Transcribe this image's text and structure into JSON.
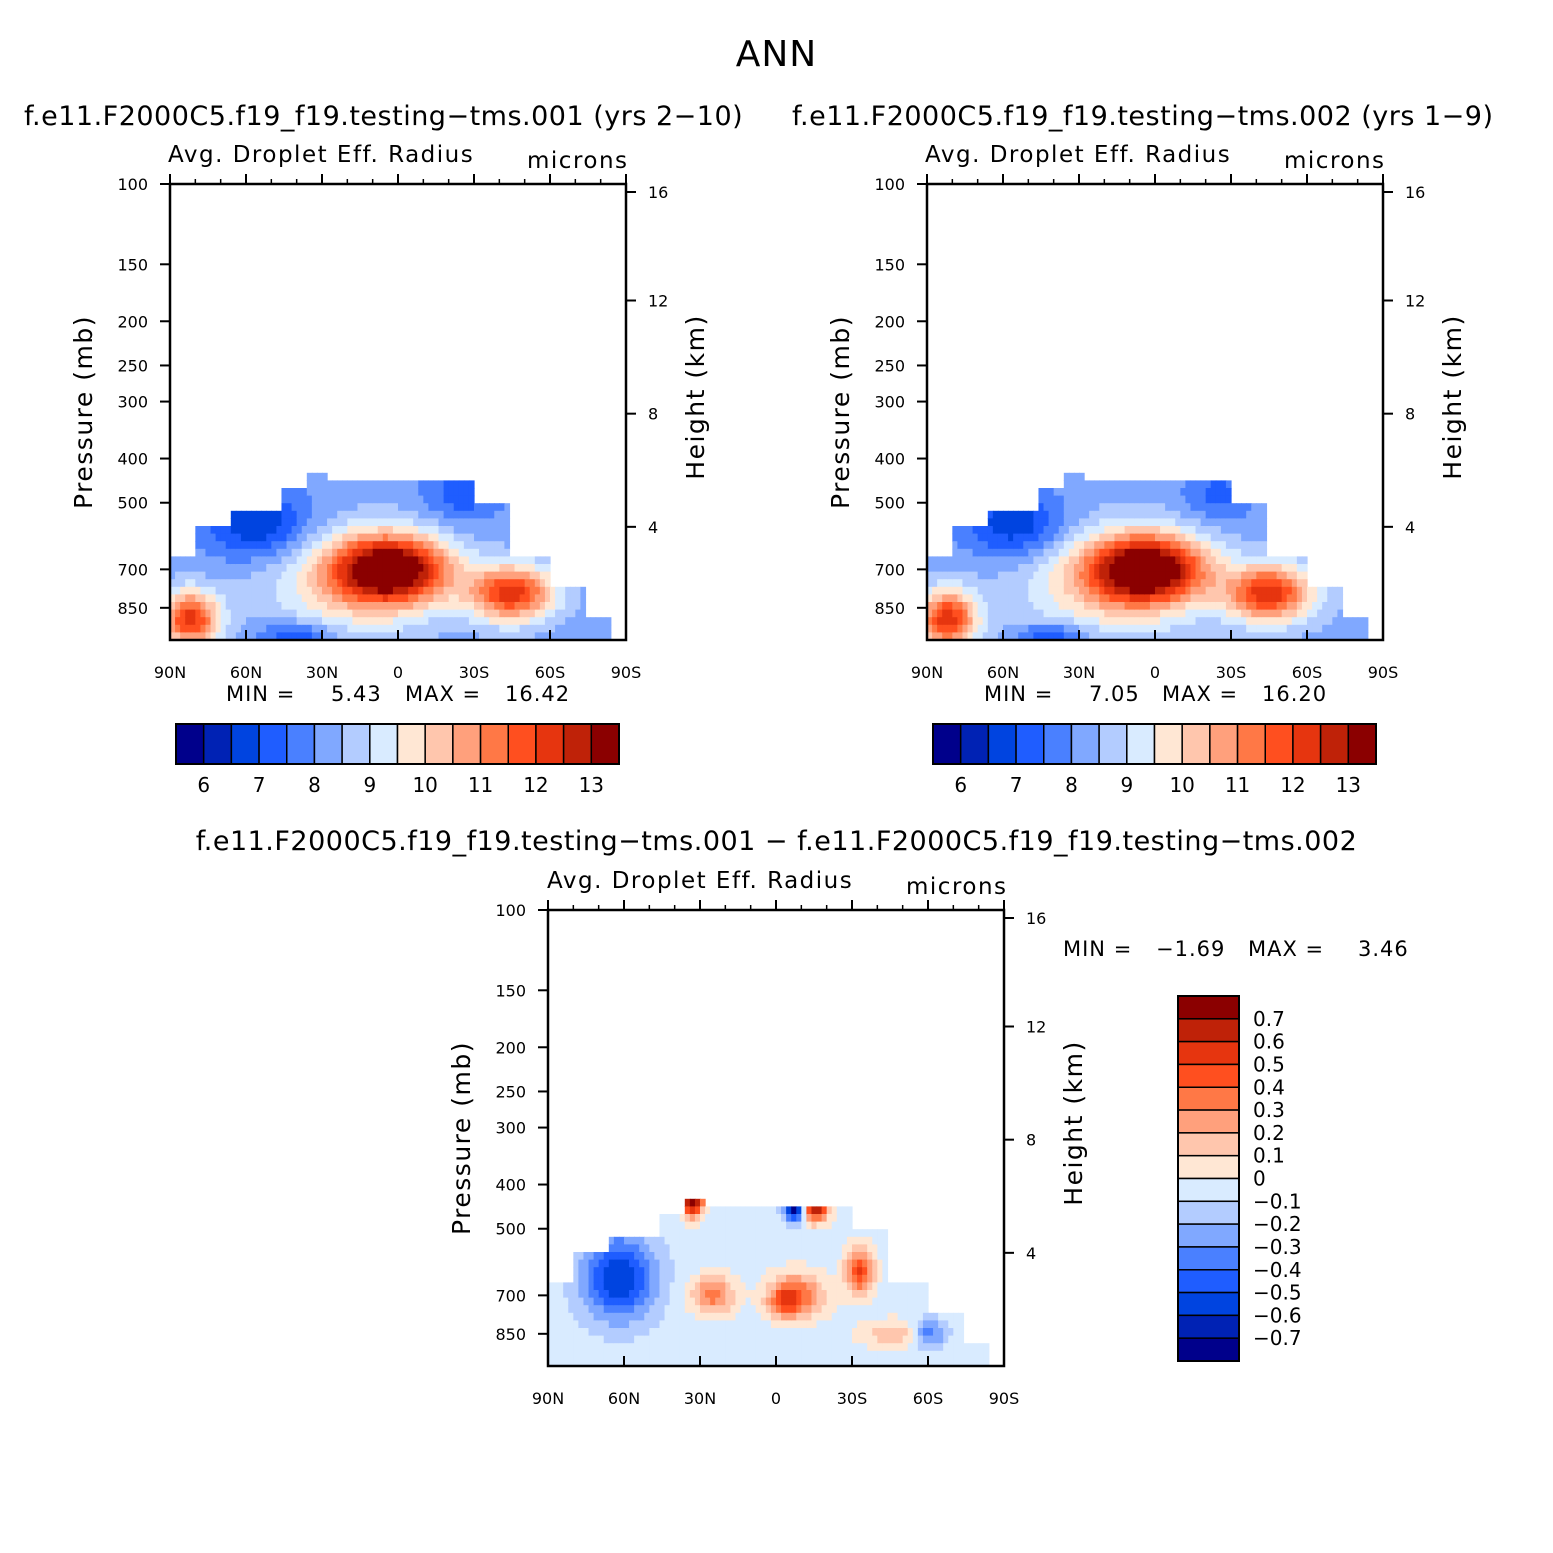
{
  "page_title": "ANN",
  "colors": {
    "abs": [
      "#00008b",
      "#0022b4",
      "#0044e0",
      "#1f5dff",
      "#4a80ff",
      "#80a8ff",
      "#b3ccff",
      "#d9ebff",
      "#ffe7d4",
      "#ffc6ad",
      "#ffa07c",
      "#ff7846",
      "#ff4f1f",
      "#e6350f",
      "#bf2208",
      "#8b0000"
    ],
    "diff": [
      "#00008b",
      "#0022b4",
      "#0044e0",
      "#1f5dff",
      "#4a80ff",
      "#80a8ff",
      "#b3ccff",
      "#d9ebff",
      "#ffe7d4",
      "#ffc6ad",
      "#ffa07c",
      "#ff7846",
      "#ff4f1f",
      "#e6350f",
      "#bf2208",
      "#8b0000"
    ]
  },
  "panels": [
    {
      "title": "f.e11.F2000C5.f19_f19.testing−tms.001 (yrs 2−10)",
      "subtitle": "Avg. Droplet Eff. Radius",
      "units": "microns",
      "y_label": "Pressure (mb)",
      "y2_label": "Height (km)",
      "y_ticks": [
        "100",
        "150",
        "200",
        "250",
        "300",
        "400",
        "500",
        "700",
        "850"
      ],
      "y2_ticks": [
        "16",
        "12",
        "8",
        "4"
      ],
      "x_ticks": [
        "90N",
        "60N",
        "30N",
        "0",
        "30S",
        "60S",
        "90S"
      ],
      "min_label": "MIN =",
      "min_value": "5.43",
      "max_label": "MAX =",
      "max_value": "16.42",
      "colorbar_labels": [
        "6",
        "7",
        "8",
        "9",
        "10",
        "11",
        "12",
        "13"
      ]
    },
    {
      "title": "f.e11.F2000C5.f19_f19.testing−tms.002 (yrs 1−9)",
      "subtitle": "Avg. Droplet Eff. Radius",
      "units": "microns",
      "y_label": "Pressure (mb)",
      "y2_label": "Height (km)",
      "y_ticks": [
        "100",
        "150",
        "200",
        "250",
        "300",
        "400",
        "500",
        "700",
        "850"
      ],
      "y2_ticks": [
        "16",
        "12",
        "8",
        "4"
      ],
      "x_ticks": [
        "90N",
        "60N",
        "30N",
        "0",
        "30S",
        "60S",
        "90S"
      ],
      "min_label": "MIN =",
      "min_value": "7.05",
      "max_label": "MAX =",
      "max_value": "16.20",
      "colorbar_labels": [
        "6",
        "7",
        "8",
        "9",
        "10",
        "11",
        "12",
        "13"
      ]
    },
    {
      "title": "f.e11.F2000C5.f19_f19.testing−tms.001 − f.e11.F2000C5.f19_f19.testing−tms.002",
      "subtitle": "Avg. Droplet Eff. Radius",
      "units": "microns",
      "y_label": "Pressure (mb)",
      "y2_label": "Height (km)",
      "y_ticks": [
        "100",
        "150",
        "200",
        "250",
        "300",
        "400",
        "500",
        "700",
        "850"
      ],
      "y2_ticks": [
        "16",
        "12",
        "8",
        "4"
      ],
      "x_ticks": [
        "90N",
        "60N",
        "30N",
        "0",
        "30S",
        "60S",
        "90S"
      ],
      "min_label": "MIN =",
      "min_value": "−1.69",
      "max_label": "MAX =",
      "max_value": "3.46",
      "colorbar_labels": [
        "0.7",
        "0.6",
        "0.5",
        "0.4",
        "0.3",
        "0.2",
        "0.1",
        "0",
        "−0.1",
        "−0.2",
        "−0.3",
        "−0.4",
        "−0.5",
        "−0.6",
        "−0.7"
      ]
    }
  ],
  "chart_data": [
    {
      "type": "heatmap",
      "title": "f.e11.F2000C5.f19_f19.testing−tms.001 (yrs 2−10)",
      "subtitle": "Avg. Droplet Eff. Radius",
      "units": "microns",
      "xlabel": "",
      "ylabel": "Pressure (mb)",
      "y2label": "Height (km)",
      "x_ticks": [
        "90N",
        "60N",
        "30N",
        "0",
        "30S",
        "60S",
        "90S"
      ],
      "y_ticks": [
        100,
        150,
        200,
        250,
        300,
        400,
        500,
        700,
        850
      ],
      "y_scale": "log",
      "y_reversed": true,
      "y2_ticks": [
        16,
        12,
        8,
        4
      ],
      "min": 5.43,
      "max": 16.42,
      "contour_levels": [
        6,
        6.5,
        7,
        7.5,
        8,
        8.5,
        9,
        9.5,
        10,
        10.5,
        11,
        11.5,
        12,
        12.5,
        13
      ],
      "colorbar_labels": [
        6,
        7,
        8,
        9,
        10,
        11,
        12,
        13
      ],
      "features": [
        {
          "region": "tropical lower troposphere (~20N to 20S, 650-750 mb)",
          "approx_value": 13.5
        },
        {
          "region": "southern midlatitudes (~40S to 60S, 750-850 mb)",
          "approx_value": 12.5
        },
        {
          "region": "north polar surface (~90N to 70N, 850-1000 mb)",
          "approx_value": 12
        },
        {
          "region": "upper cloud edge (~400-500 mb)",
          "approx_value": 7
        }
      ]
    },
    {
      "type": "heatmap",
      "title": "f.e11.F2000C5.f19_f19.testing−tms.002 (yrs 1−9)",
      "subtitle": "Avg. Droplet Eff. Radius",
      "units": "microns",
      "xlabel": "",
      "ylabel": "Pressure (mb)",
      "y2label": "Height (km)",
      "x_ticks": [
        "90N",
        "60N",
        "30N",
        "0",
        "30S",
        "60S",
        "90S"
      ],
      "y_ticks": [
        100,
        150,
        200,
        250,
        300,
        400,
        500,
        700,
        850
      ],
      "y_scale": "log",
      "y_reversed": true,
      "y2_ticks": [
        16,
        12,
        8,
        4
      ],
      "min": 7.05,
      "max": 16.2,
      "contour_levels": [
        6,
        6.5,
        7,
        7.5,
        8,
        8.5,
        9,
        9.5,
        10,
        10.5,
        11,
        11.5,
        12,
        12.5,
        13
      ],
      "colorbar_labels": [
        6,
        7,
        8,
        9,
        10,
        11,
        12,
        13
      ],
      "features": [
        {
          "region": "tropical lower troposphere (~20N to 20S, 650-750 mb)",
          "approx_value": 13.5
        },
        {
          "region": "southern midlatitudes (~40S to 60S, 750-850 mb)",
          "approx_value": 12.5
        },
        {
          "region": "north polar surface (~90N to 70N, 850-1000 mb)",
          "approx_value": 12
        },
        {
          "region": "upper cloud edge (~400-500 mb)",
          "approx_value": 7
        }
      ]
    },
    {
      "type": "heatmap",
      "title": "f.e11.F2000C5.f19_f19.testing−tms.001 − f.e11.F2000C5.f19_f19.testing−tms.002",
      "subtitle": "Avg. Droplet Eff. Radius",
      "units": "microns",
      "xlabel": "",
      "ylabel": "Pressure (mb)",
      "y2label": "Height (km)",
      "x_ticks": [
        "90N",
        "60N",
        "30N",
        "0",
        "30S",
        "60S",
        "90S"
      ],
      "y_ticks": [
        100,
        150,
        200,
        250,
        300,
        400,
        500,
        700,
        850
      ],
      "y_scale": "log",
      "y_reversed": true,
      "y2_ticks": [
        16,
        12,
        8,
        4
      ],
      "min": -1.69,
      "max": 3.46,
      "contour_levels": [
        -0.7,
        -0.6,
        -0.5,
        -0.4,
        -0.3,
        -0.2,
        -0.1,
        0,
        0.1,
        0.2,
        0.3,
        0.4,
        0.5,
        0.6,
        0.7
      ],
      "colorbar_labels": [
        0.7,
        0.6,
        0.5,
        0.4,
        0.3,
        0.2,
        0.1,
        0,
        -0.1,
        -0.2,
        -0.3,
        -0.4,
        -0.5,
        -0.6,
        -0.7
      ],
      "features": [
        {
          "region": "northern high latitudes (~80N to 50N, 600-750 mb)",
          "approx_value": -0.5
        },
        {
          "region": "tropics (~20N to 10S, 650-750 mb)",
          "approx_value": 0.5
        },
        {
          "region": "southern subtropics (~30S to 35S, 600-650 mb)",
          "approx_value": 0.5
        },
        {
          "region": "cloud top edge near 30N and 0-20S (~400-450 mb)",
          "approx_value": 0.8
        }
      ]
    }
  ]
}
